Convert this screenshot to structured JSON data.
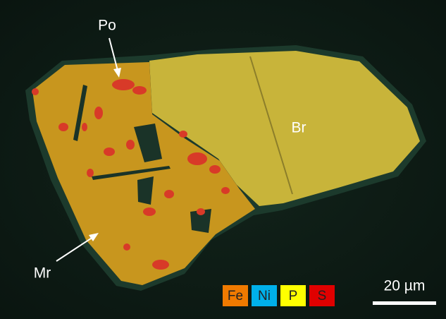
{
  "labels": {
    "po": "Po",
    "br": "Br",
    "mr": "Mr"
  },
  "legend": [
    "Fe",
    "Ni",
    "P",
    "S"
  ],
  "scale_bar": "20 µm"
}
